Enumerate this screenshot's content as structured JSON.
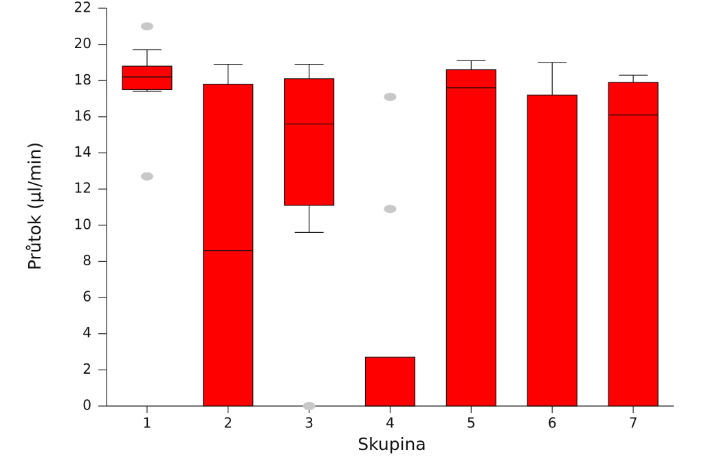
{
  "chart_data": {
    "type": "box",
    "x_label": "Skupina",
    "y_label": "Průtok (µl/min)",
    "categories": [
      "1",
      "2",
      "3",
      "4",
      "5",
      "6",
      "7"
    ],
    "boxes": [
      {
        "min": 17.4,
        "q1": 17.5,
        "median": 18.2,
        "q3": 18.8,
        "max": 19.7,
        "outliers": [
          21.0,
          12.7
        ]
      },
      {
        "min": 0,
        "q1": 0,
        "median": 8.6,
        "q3": 17.8,
        "max": 18.9,
        "outliers": []
      },
      {
        "min": 9.6,
        "q1": 11.1,
        "median": 15.6,
        "q3": 18.1,
        "max": 18.9,
        "outliers": [
          0
        ]
      },
      {
        "min": 0,
        "q1": 0,
        "median": 0,
        "q3": 2.7,
        "max": 2.7,
        "outliers": [
          17.1,
          10.9
        ]
      },
      {
        "min": 0,
        "q1": 0,
        "median": 17.6,
        "q3": 18.6,
        "max": 19.1,
        "outliers": []
      },
      {
        "min": 0,
        "q1": 0,
        "median": 0,
        "q3": 17.2,
        "max": 19.0,
        "outliers": []
      },
      {
        "min": 0,
        "q1": 0,
        "median": 16.1,
        "q3": 17.9,
        "max": 18.3,
        "outliers": []
      }
    ],
    "color": "#ff0000",
    "outlier_color": "#c8c8c8",
    "ylim": [
      0,
      22
    ],
    "yticks": [
      0,
      2,
      4,
      6,
      8,
      10,
      12,
      14,
      16,
      18,
      20,
      22
    ]
  }
}
